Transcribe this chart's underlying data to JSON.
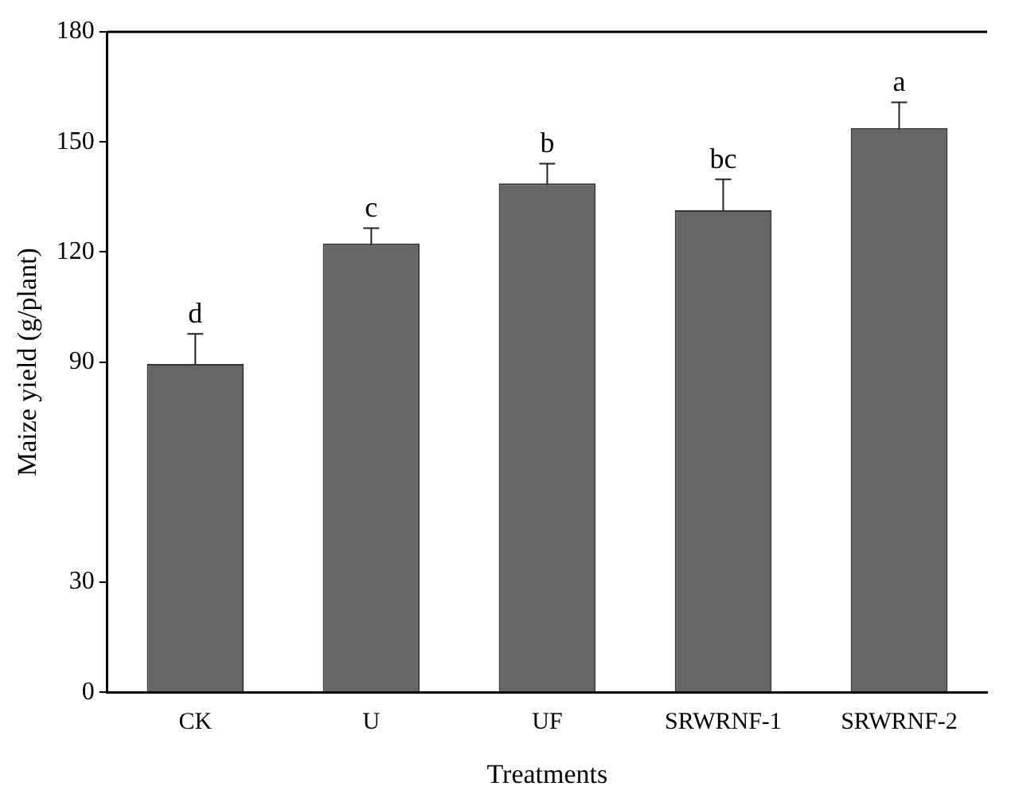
{
  "chart_data": {
    "type": "bar",
    "xlabel": "Treatments",
    "ylabel": "Maize yield (g/plant)",
    "categories": [
      "CK",
      "U",
      "UF",
      "SRWRNF-1",
      "SRWRNF-2"
    ],
    "values": [
      89.5,
      122.3,
      138.7,
      131.4,
      153.8
    ],
    "errors": [
      8.2,
      4.2,
      5.4,
      8.4,
      7
    ],
    "color": "#666666",
    "ylim": [
      0,
      180
    ],
    "yticks": [
      0,
      30,
      90,
      120,
      150,
      180
    ],
    "grid": false,
    "annotations": [
      {
        "text": "d",
        "x": "CK",
        "y": 97.7
      },
      {
        "text": "c",
        "x": "U",
        "y": 126.5
      },
      {
        "text": "b",
        "x": "UF",
        "y": 144.1
      },
      {
        "text": "bc",
        "x": "SRWRNF-1",
        "y": 139.8
      },
      {
        "text": "a",
        "x": "SRWRNF-2",
        "y": 160.8
      }
    ]
  }
}
